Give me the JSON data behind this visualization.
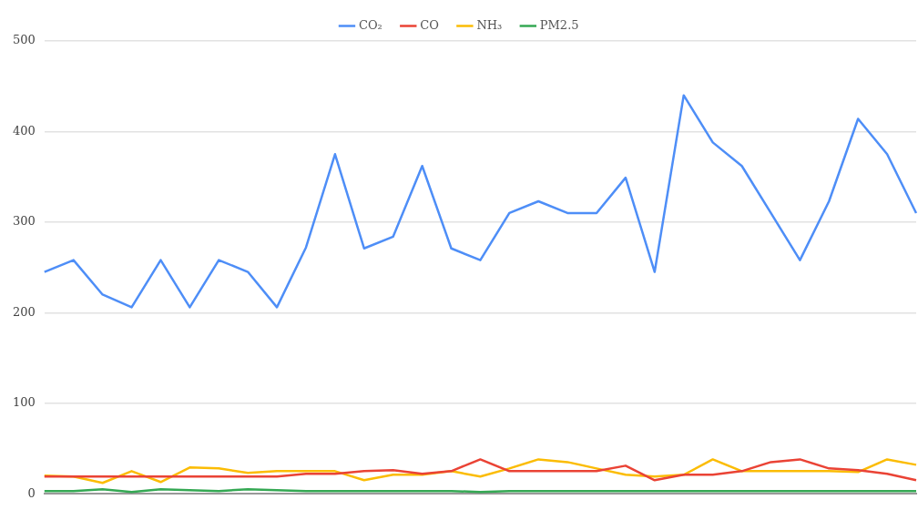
{
  "chart_data": {
    "type": "line",
    "categories": [
      null,
      null,
      null,
      null,
      null,
      null,
      null,
      null,
      null,
      null,
      null,
      null,
      null,
      null,
      null,
      null,
      null,
      null,
      null,
      null,
      null,
      null,
      null,
      null,
      null,
      null,
      null,
      null,
      null,
      null,
      null
    ],
    "series": [
      {
        "name": "CO₂",
        "color": "#4e8ef7",
        "values": [
          245,
          258,
          220,
          206,
          258,
          206,
          258,
          245,
          206,
          272,
          375,
          271,
          284,
          362,
          271,
          258,
          310,
          323,
          310,
          310,
          349,
          245,
          440,
          388,
          362,
          310,
          258,
          323,
          414,
          375,
          310
        ]
      },
      {
        "name": "CO",
        "color": "#ea4335",
        "values": [
          19,
          19,
          19,
          19,
          19,
          19,
          19,
          19,
          19,
          22,
          22,
          25,
          26,
          22,
          25,
          38,
          25,
          25,
          25,
          25,
          31,
          15,
          21,
          21,
          25,
          35,
          38,
          28,
          26,
          22,
          15
        ]
      },
      {
        "name": "NH₃",
        "color": "#fbbc04",
        "values": [
          20,
          19,
          12,
          25,
          13,
          29,
          28,
          23,
          25,
          25,
          25,
          15,
          21,
          21,
          25,
          19,
          28,
          38,
          35,
          28,
          21,
          19,
          21,
          38,
          25,
          25,
          25,
          25,
          24,
          38,
          32
        ]
      },
      {
        "name": "PM2.5",
        "color": "#34a853",
        "values": [
          3,
          3,
          5,
          2,
          5,
          4,
          3,
          5,
          4,
          3,
          3,
          3,
          3,
          3,
          3,
          2,
          3,
          3,
          3,
          3,
          3,
          3,
          3,
          3,
          3,
          3,
          3,
          3,
          3,
          3,
          3
        ]
      }
    ],
    "ylim": [
      0,
      500
    ],
    "yticks": [
      0,
      100,
      200,
      300,
      400,
      500
    ],
    "grid": "y",
    "legend": "top",
    "tick_labels": "y",
    "marker": "none",
    "line_style": "solid"
  }
}
